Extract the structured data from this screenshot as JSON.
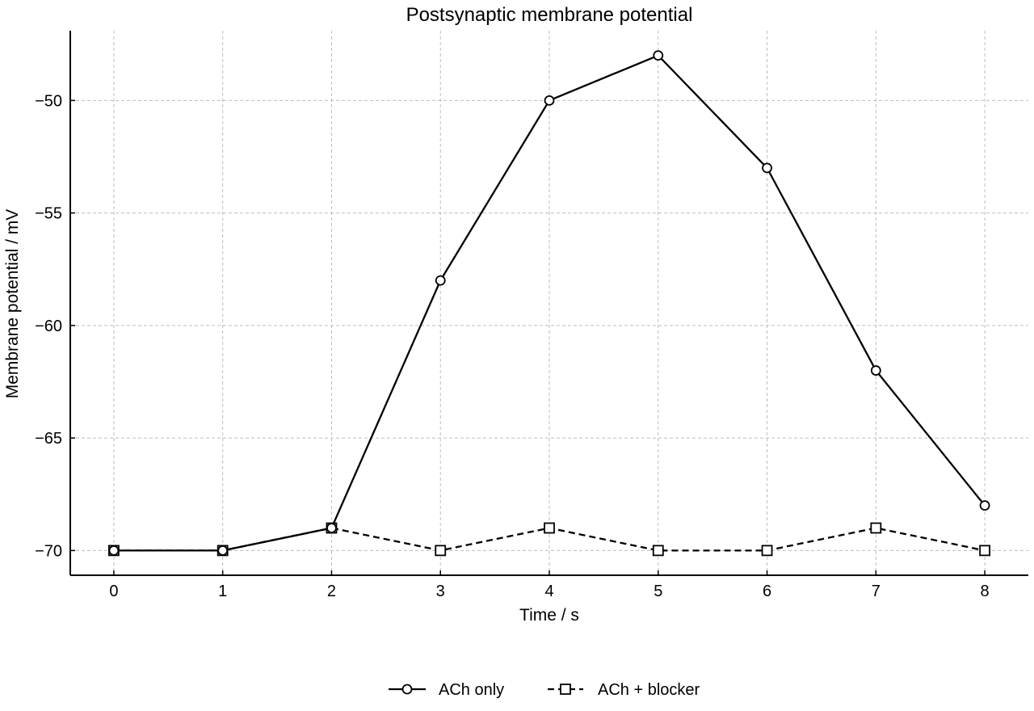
{
  "chart_data": {
    "type": "line",
    "title": "Postsynaptic membrane potential",
    "xlabel": "Time / s",
    "ylabel": "Membrane potential / mV",
    "x": [
      0,
      1,
      2,
      3,
      4,
      5,
      6,
      7,
      8
    ],
    "xlim": [
      -0.4,
      8.4
    ],
    "ylim": [
      -71.1,
      -46.9
    ],
    "xticks": [
      0,
      1,
      2,
      3,
      4,
      5,
      6,
      7,
      8
    ],
    "yticks": [
      -70,
      -65,
      -60,
      -55,
      -50
    ],
    "ytick_labels": [
      "−70",
      "−65",
      "−60",
      "−55",
      "−50"
    ],
    "grid": true,
    "legend_position": "bottom-center",
    "series": [
      {
        "name": "ACh only",
        "values": [
          -70,
          -70,
          -69,
          -58,
          -50,
          -48,
          -53,
          -62,
          -68
        ],
        "marker": "circle",
        "line_style": "solid",
        "color": "#000000"
      },
      {
        "name": "ACh + blocker",
        "values": [
          -70,
          -70,
          -69,
          -70,
          -69,
          -70,
          -70,
          -69,
          -70
        ],
        "marker": "square",
        "line_style": "dashed",
        "color": "#000000"
      }
    ]
  }
}
